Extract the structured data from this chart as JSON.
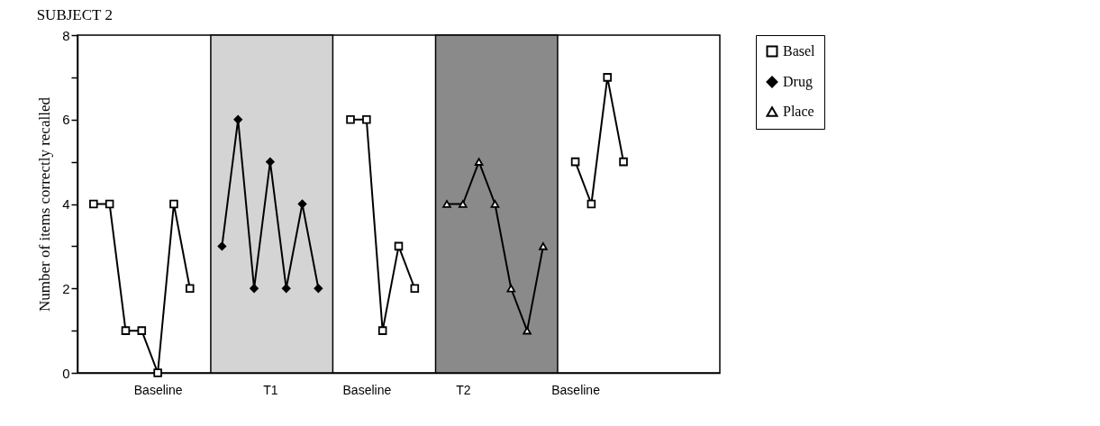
{
  "chart_data": {
    "type": "line",
    "title": "SUBJECT 2",
    "ylabel": "Number of items correctly recalled",
    "categories": [
      null,
      null,
      null,
      null,
      "Baseline",
      null,
      null,
      null,
      null,
      null,
      null,
      "T1",
      null,
      null,
      null,
      null,
      null,
      "Baseline",
      null,
      null,
      null,
      null,
      null,
      "T2",
      null,
      null,
      null,
      null,
      null,
      null,
      "Baseline",
      null,
      null,
      null,
      null,
      null,
      null,
      null,
      null
    ],
    "ylim": [
      0,
      8
    ],
    "yticks": [
      0,
      {
        "value": 1,
        "label": null
      },
      2,
      {
        "value": 3,
        "label": null
      },
      4,
      {
        "value": 5,
        "label": null
      },
      6,
      {
        "value": 7,
        "label": null
      },
      8
    ],
    "series": [
      {
        "name": "Basel",
        "color": "#000000",
        "marker": "square",
        "values": [
          4,
          4,
          1,
          1,
          0,
          4,
          2,
          null,
          null,
          null,
          null,
          null,
          null,
          null,
          null,
          null,
          6,
          6,
          1,
          3,
          2,
          null,
          null,
          null,
          null,
          null,
          null,
          null,
          null,
          null,
          5,
          4,
          7,
          5,
          null,
          null,
          null,
          null,
          null
        ]
      },
      {
        "name": "Drug",
        "color": "#000000",
        "marker": "diamond",
        "values": [
          null,
          null,
          null,
          null,
          null,
          null,
          null,
          null,
          3,
          6,
          2,
          5,
          2,
          4,
          2,
          null,
          null,
          null,
          null,
          null,
          null,
          null,
          null,
          null,
          null,
          null,
          null,
          null,
          null,
          null,
          null,
          null,
          null,
          null,
          null,
          null,
          null,
          null,
          null
        ]
      },
      {
        "name": "Place",
        "color": "#000000",
        "marker": "triangle",
        "values": [
          null,
          null,
          null,
          null,
          null,
          null,
          null,
          null,
          null,
          null,
          null,
          null,
          null,
          null,
          null,
          null,
          null,
          null,
          null,
          null,
          null,
          null,
          4,
          4,
          5,
          4,
          2,
          1,
          3,
          null,
          null,
          null,
          null,
          null,
          null,
          null,
          null,
          null,
          null
        ]
      }
    ],
    "legend": "right"
  }
}
